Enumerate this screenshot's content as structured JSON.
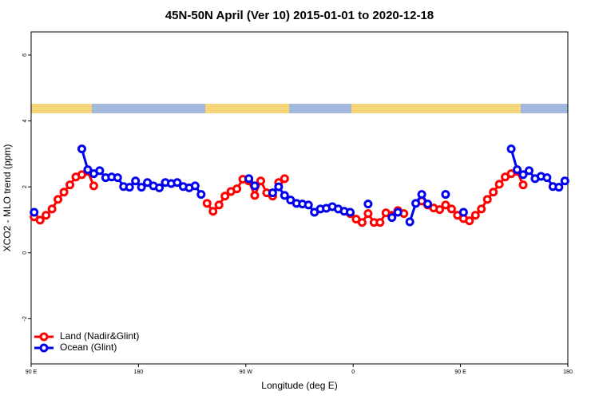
{
  "chart_data": {
    "type": "line",
    "title": "45N-50N April (Ver 10)   2015-01-01 to 2020-12-18",
    "x_label": "Longitude (deg E)",
    "y_label": "XCO2 - MLO trend (ppm)",
    "xlim": [
      90,
      540
    ],
    "ylim": [
      -3.37,
      6.7
    ],
    "xticks": [
      {
        "value": 90,
        "label": "90 E"
      },
      {
        "value": 180,
        "label": "180"
      },
      {
        "value": 270,
        "label": "90 W"
      },
      {
        "value": 360,
        "label": "0"
      },
      {
        "value": 450,
        "label": "90 E"
      },
      {
        "value": 540,
        "label": "180"
      }
    ],
    "yticks": [
      -2,
      0,
      2,
      4,
      6
    ],
    "legend": "bottom-left",
    "x": [
      92.5,
      97.5,
      102.5,
      107.5,
      112.5,
      117.5,
      122.5,
      127.5,
      132.5,
      137.5,
      142.5,
      147.5,
      152.5,
      157.5,
      162.5,
      167.5,
      172.5,
      177.5,
      182.5,
      187.5,
      192.5,
      197.5,
      202.5,
      207.5,
      212.5,
      217.5,
      222.5,
      227.5,
      232.5,
      237.5,
      242.5,
      247.5,
      252.5,
      257.5,
      262.5,
      267.5,
      272.5,
      277.5,
      282.5,
      287.5,
      292.5,
      297.5,
      302.5,
      307.5,
      312.5,
      317.5,
      322.5,
      327.5,
      332.5,
      337.5,
      342.5,
      347.5,
      352.5,
      357.5,
      362.5,
      367.5,
      372.5,
      377.5,
      382.5,
      387.5,
      392.5,
      397.5,
      402.5,
      407.5,
      412.5,
      417.5,
      422.5,
      427.5,
      432.5,
      437.5,
      442.5,
      447.5,
      452.5,
      457.5,
      462.5,
      467.5,
      472.5,
      477.5,
      482.5,
      487.5,
      492.5,
      497.5,
      502.5,
      507.5,
      512.5,
      517.5,
      522.5,
      527.5,
      532.5,
      537.5
    ],
    "series": [
      {
        "name": "Land (Nadir&Glint)",
        "color": "#ff0000",
        "values": [
          1.09,
          0.99,
          1.14,
          1.33,
          1.62,
          1.84,
          2.06,
          2.3,
          2.37,
          2.47,
          2.03,
          null,
          null,
          null,
          null,
          null,
          null,
          null,
          null,
          null,
          null,
          null,
          null,
          null,
          null,
          null,
          null,
          null,
          null,
          1.5,
          1.26,
          1.45,
          1.72,
          1.86,
          1.94,
          2.23,
          2.18,
          1.74,
          2.18,
          1.82,
          1.72,
          2.13,
          2.25,
          null,
          null,
          null,
          null,
          null,
          null,
          null,
          null,
          null,
          null,
          1.19,
          1.02,
          0.92,
          1.19,
          0.92,
          0.92,
          1.21,
          1.14,
          1.28,
          1.19,
          null,
          null,
          1.57,
          1.45,
          1.36,
          1.31,
          1.45,
          1.33,
          1.14,
          1.04,
          0.97,
          1.14,
          1.33,
          1.62,
          1.84,
          2.08,
          2.3,
          2.4,
          2.47,
          2.06,
          null,
          null,
          null,
          null,
          null,
          null,
          null
        ]
      },
      {
        "name": "Ocean (Glint)",
        "color": "#0000ee",
        "values": [
          1.23,
          null,
          null,
          null,
          null,
          null,
          null,
          null,
          3.15,
          2.52,
          2.4,
          2.49,
          2.28,
          2.3,
          2.28,
          2.01,
          1.99,
          2.18,
          1.99,
          2.13,
          2.03,
          1.97,
          2.13,
          2.1,
          2.13,
          2.01,
          1.97,
          2.03,
          1.77,
          null,
          null,
          null,
          null,
          null,
          null,
          null,
          2.25,
          2.03,
          null,
          null,
          1.82,
          2.0,
          1.74,
          1.6,
          1.5,
          1.48,
          1.45,
          1.23,
          1.33,
          1.35,
          1.4,
          1.33,
          1.26,
          1.23,
          null,
          null,
          1.48,
          null,
          null,
          null,
          1.07,
          1.23,
          null,
          0.94,
          1.5,
          1.77,
          1.48,
          null,
          null,
          1.77,
          null,
          null,
          1.23,
          null,
          null,
          null,
          null,
          null,
          null,
          null,
          3.15,
          2.52,
          2.37,
          2.49,
          2.25,
          2.32,
          2.28,
          2.01,
          1.99,
          2.18
        ]
      }
    ]
  }
}
